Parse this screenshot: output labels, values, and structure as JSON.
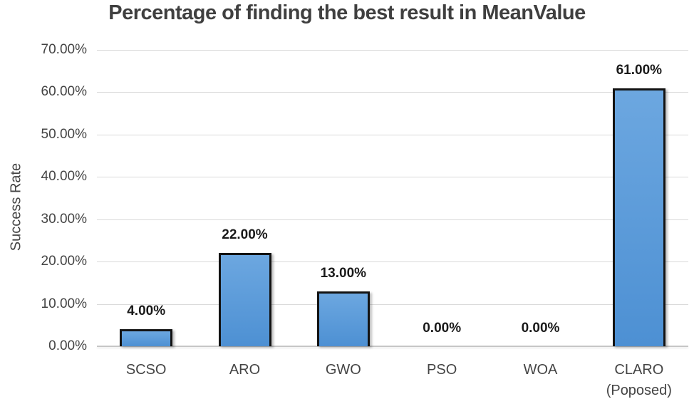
{
  "chart_data": {
    "type": "bar",
    "title": "Percentage of finding the best result in MeanValue",
    "ylabel": "Success Rate",
    "xlabel": "",
    "categories": [
      "SCSO",
      "ARO",
      "GWO",
      "PSO",
      "WOA",
      "CLARO\n(Poposed)"
    ],
    "values": [
      4,
      22,
      13,
      0,
      0,
      61
    ],
    "value_labels": [
      "4.00%",
      "22.00%",
      "13.00%",
      "0.00%",
      "0.00%",
      "61.00%"
    ],
    "ylim": [
      0,
      70
    ],
    "ytick_step": 10,
    "ytick_labels": [
      "0.00%",
      "10.00%",
      "20.00%",
      "30.00%",
      "40.00%",
      "50.00%",
      "60.00%",
      "70.00%"
    ],
    "grid": true,
    "legend": "none"
  },
  "colors": {
    "background": "#ffffff",
    "title": "#3f3f3f",
    "axis_text": "#444444",
    "gridline": "#d9d9d9",
    "axis_line": "#c6c6c6",
    "bar_top": "#6ca7e0",
    "bar_bottom": "#4d90d3",
    "bar_border": "#131313",
    "label": "#1a1a1a"
  }
}
